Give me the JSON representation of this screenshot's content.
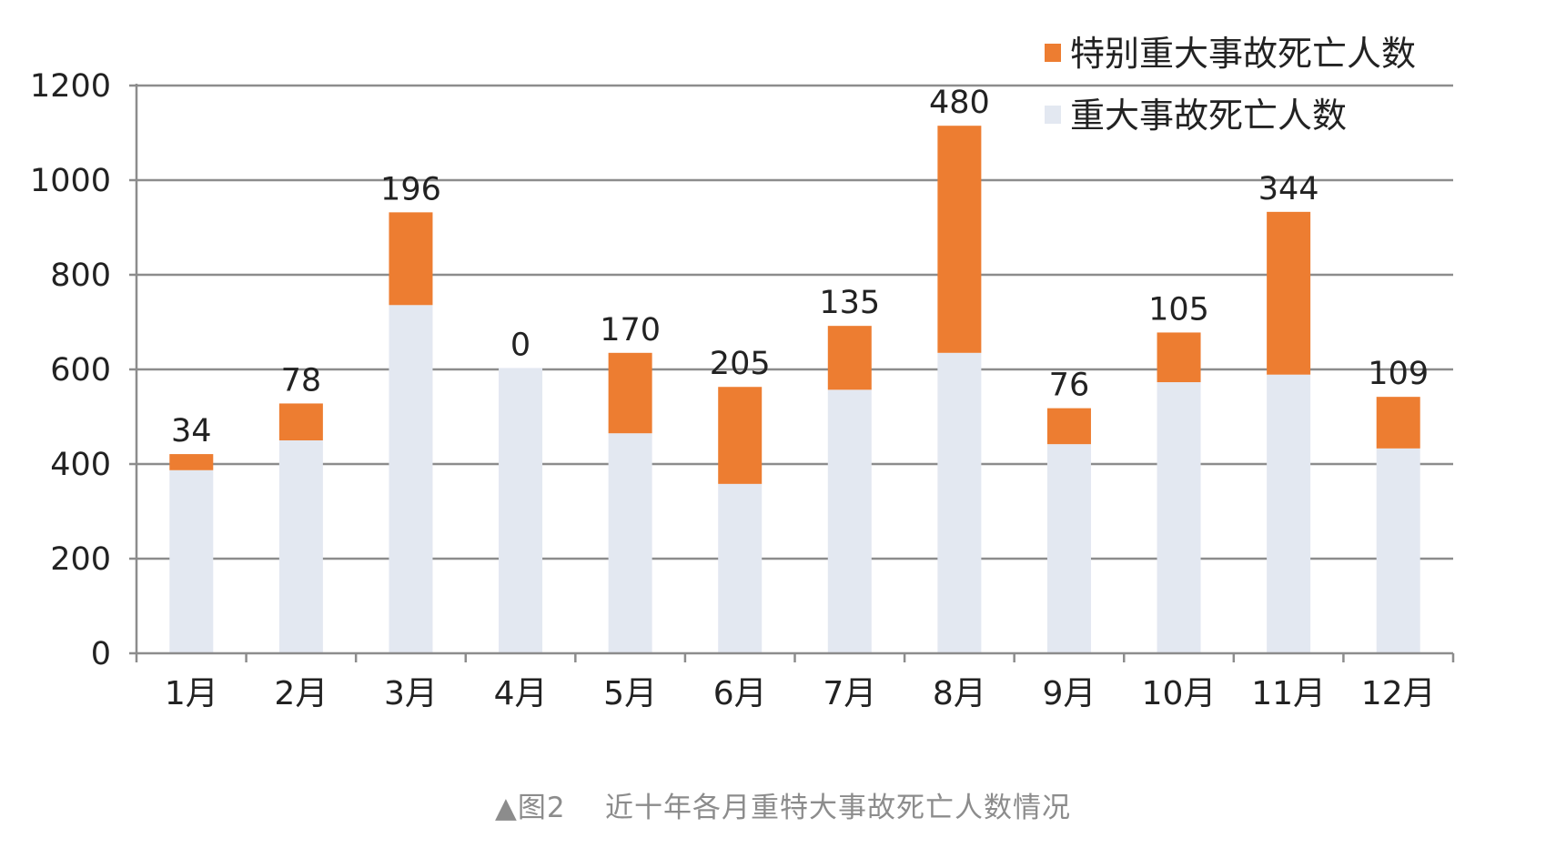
{
  "chart_data": {
    "type": "bar",
    "stacked": true,
    "categories": [
      "1月",
      "2月",
      "3月",
      "4月",
      "5月",
      "6月",
      "7月",
      "8月",
      "9月",
      "10月",
      "11月",
      "12月"
    ],
    "series": [
      {
        "name": "重大事故死亡人数",
        "color": "#e3e8f1",
        "values": [
          387,
          450,
          736,
          603,
          465,
          358,
          557,
          635,
          442,
          573,
          589,
          433
        ]
      },
      {
        "name": "特别重大事故死亡人数",
        "color": "#ed7d31",
        "values": [
          34,
          78,
          196,
          0,
          170,
          205,
          135,
          480,
          76,
          105,
          344,
          109
        ]
      }
    ],
    "data_labels": [
      "34",
      "78",
      "196",
      "0",
      "170",
      "205",
      "135",
      "480",
      "76",
      "105",
      "344",
      "109"
    ],
    "y_ticks": [
      "0",
      "200",
      "400",
      "600",
      "800",
      "1000",
      "1200"
    ],
    "ylim": [
      0,
      1200
    ],
    "grid": true,
    "legend_position": "top-right",
    "xlabel": "",
    "ylabel": ""
  },
  "caption": {
    "marker": "▲",
    "label": "图2",
    "text": "近十年各月重特大事故死亡人数情况"
  }
}
